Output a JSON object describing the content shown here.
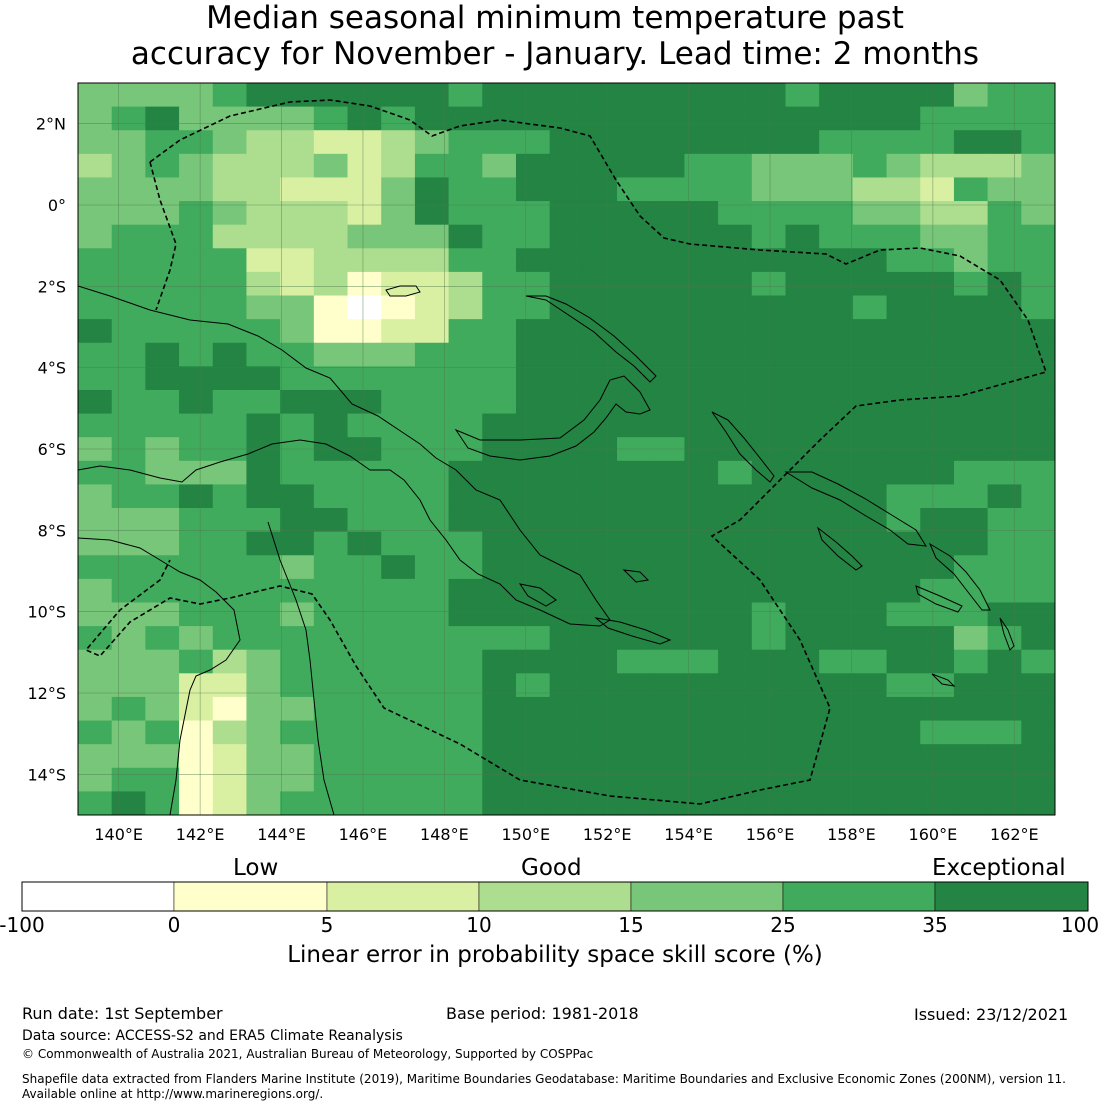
{
  "title": {
    "line1": "Median seasonal minimum temperature past",
    "line2": "accuracy for November - January. Lead time: 2 months"
  },
  "map": {
    "lon_labels": [
      "140°E",
      "142°E",
      "144°E",
      "146°E",
      "148°E",
      "150°E",
      "152°E",
      "154°E",
      "156°E",
      "158°E",
      "160°E",
      "162°E"
    ],
    "lon_values": [
      140,
      142,
      144,
      146,
      148,
      150,
      152,
      154,
      156,
      158,
      160,
      162
    ],
    "lat_labels": [
      "2°N",
      "0°",
      "2°S",
      "4°S",
      "6°S",
      "8°S",
      "10°S",
      "12°S",
      "14°S"
    ],
    "lat_values": [
      2,
      0,
      -2,
      -4,
      -6,
      -8,
      -10,
      -12,
      -14
    ],
    "extent": {
      "lon": [
        139,
        163
      ],
      "lat": [
        -15,
        3
      ]
    }
  },
  "colorbar": {
    "categories": [
      "Low",
      "Good",
      "Exceptional"
    ],
    "ticks": [
      "-100",
      "0",
      "5",
      "10",
      "15",
      "25",
      "35",
      "100"
    ],
    "colors": [
      "#ffffff",
      "#ffffcc",
      "#d9f0a3",
      "#addd8e",
      "#78c679",
      "#41ab5d",
      "#238443"
    ],
    "label": "Linear error in probability space skill score (%)"
  },
  "footer": {
    "run_date": "Run date: 1st September",
    "base_period": "Base period: 1981-2018",
    "issued": "Issued: 23/12/2021",
    "data_source": "Data source: ACCESS-S2 and ERA5 Climate Reanalysis",
    "copyright": "© Commonwealth of Australia 2021, Australian Bureau of Meteorology, Supported by COSPPac",
    "shapefile_line1": "Shapefile data extracted from Flanders Marine Institute (2019), Maritime Boundaries Geodatabase: Maritime Boundaries and Exclusive Economic Zones (200NM), version 11.",
    "shapefile_line2": "Available online at http://www.marineregions.org/."
  }
}
